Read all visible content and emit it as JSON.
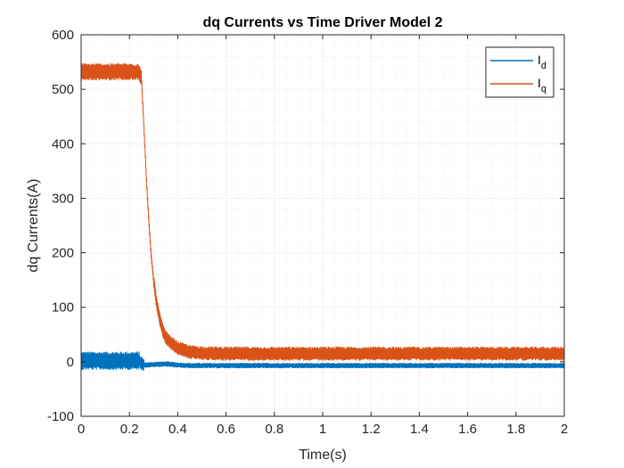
{
  "chart_data": {
    "type": "line",
    "title": "dq Currents vs Time Driver Model 2",
    "xlabel": "Time(s)",
    "ylabel": "dq Currents(A)",
    "xlim": [
      0,
      2
    ],
    "ylim": [
      -100,
      600
    ],
    "xticks": [
      0,
      0.2,
      0.4,
      0.6,
      0.8,
      1,
      1.2,
      1.4,
      1.6,
      1.8,
      2
    ],
    "xtick_labels": [
      "0",
      "0.2",
      "0.4",
      "0.6",
      "0.8",
      "1",
      "1.2",
      "1.4",
      "1.6",
      "1.8",
      "2"
    ],
    "yticks": [
      -100,
      0,
      100,
      200,
      300,
      400,
      500,
      600
    ],
    "ytick_labels": [
      "-100",
      "0",
      "100",
      "200",
      "300",
      "400",
      "500",
      "600"
    ],
    "grid": true,
    "minor_grid": true,
    "legend_position": "top-right",
    "series": [
      {
        "name": "I_d",
        "legend_main": "I",
        "legend_sub": "d",
        "color": "#0072BD",
        "x": [
          0,
          0.1,
          0.2,
          0.24,
          0.26,
          0.3,
          0.35,
          0.4,
          0.45,
          0.5,
          0.6,
          0.8,
          1.0,
          1.2,
          1.4,
          1.6,
          1.8,
          2.0
        ],
        "y": [
          2,
          2,
          2,
          2,
          -6,
          -5,
          -4,
          -6,
          -7,
          -7,
          -7,
          -7,
          -7,
          -7,
          -7,
          -7,
          -7,
          -7
        ],
        "ripple": [
          [
            0,
            0.24,
            17
          ],
          [
            0.24,
            0.26,
            12
          ],
          [
            0.26,
            2.0,
            5
          ]
        ]
      },
      {
        "name": "I_q",
        "legend_main": "I",
        "legend_sub": "q",
        "color": "#D95319",
        "x": [
          0,
          0.05,
          0.1,
          0.15,
          0.2,
          0.24,
          0.25,
          0.26,
          0.27,
          0.28,
          0.29,
          0.3,
          0.31,
          0.32,
          0.33,
          0.34,
          0.35,
          0.37,
          0.4,
          0.45,
          0.5,
          0.6,
          0.8,
          1.0,
          1.2,
          1.4,
          1.6,
          1.8,
          2.0
        ],
        "y": [
          532,
          532,
          532,
          532,
          532,
          532,
          520,
          430,
          340,
          260,
          195,
          150,
          115,
          90,
          70,
          55,
          45,
          35,
          25,
          18,
          16,
          15,
          15,
          15,
          15,
          15,
          15,
          15,
          15
        ],
        "ripple": [
          [
            0,
            0.25,
            16
          ],
          [
            0.25,
            0.3,
            8
          ],
          [
            0.3,
            2.0,
            13
          ]
        ]
      }
    ]
  }
}
